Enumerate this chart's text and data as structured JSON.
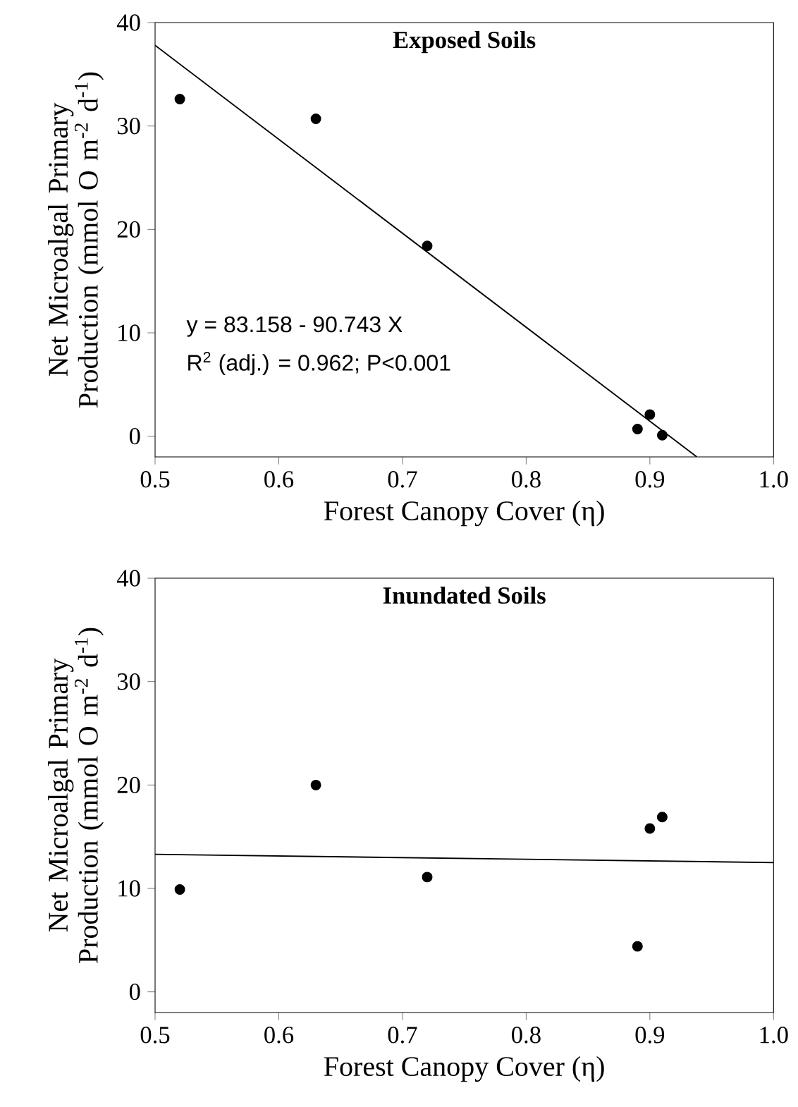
{
  "chart_data": [
    {
      "type": "scatter",
      "title": "Exposed Soils",
      "xlabel": "Forest Canopy Cover (η)",
      "ylabel": "Net Microalgal Primary Production (mmol O m$^{-2}$ d$^{-1}$)",
      "xlim": [
        0.5,
        1.0
      ],
      "ylim": [
        -2,
        40
      ],
      "xticks": [
        0.5,
        0.6,
        0.7,
        0.8,
        0.9,
        {
          "value": 1,
          "label": "1.0"
        }
      ],
      "yticks": [
        0,
        10,
        20,
        30,
        40
      ],
      "series": [
        {
          "color": "#000000",
          "marker": "circle",
          "x": [
            0.52,
            0.63,
            0.72,
            0.89,
            0.9,
            0.91
          ],
          "values": [
            32.6,
            30.7,
            18.4,
            0.7,
            2.1,
            0.1
          ]
        },
        {
          "type": "line",
          "color": "#000000",
          "line_style": "solid",
          "marker": "none",
          "x": [
            0.5,
            0.938
          ],
          "values": [
            37.8,
            -2
          ]
        }
      ],
      "annotations": [
        "y = 83.158 - 90.743 X",
        "R$^{2}$ (adj.) = 0.962; P<0.001"
      ]
    },
    {
      "type": "scatter",
      "title": "Inundated Soils",
      "xlabel": "Forest Canopy Cover (η)",
      "ylabel": "Net Microalgal Primary Production (mmol O m$^{-2}$ d$^{-1}$)",
      "xlim": [
        0.5,
        1.0
      ],
      "ylim": [
        -2,
        40
      ],
      "xticks": [
        0.5,
        0.6,
        0.7,
        0.8,
        0.9,
        {
          "value": 1,
          "label": "1.0"
        }
      ],
      "yticks": [
        0,
        10,
        20,
        30,
        40
      ],
      "series": [
        {
          "color": "#000000",
          "marker": "circle",
          "x": [
            0.52,
            0.63,
            0.72,
            0.89,
            0.9,
            0.91
          ],
          "values": [
            9.9,
            20.0,
            11.1,
            4.4,
            15.8,
            16.9
          ]
        },
        {
          "type": "line",
          "color": "#000000",
          "line_style": "solid",
          "marker": "none",
          "x": [
            0.5,
            1.0
          ],
          "values": [
            13.3,
            12.5
          ]
        }
      ]
    }
  ]
}
